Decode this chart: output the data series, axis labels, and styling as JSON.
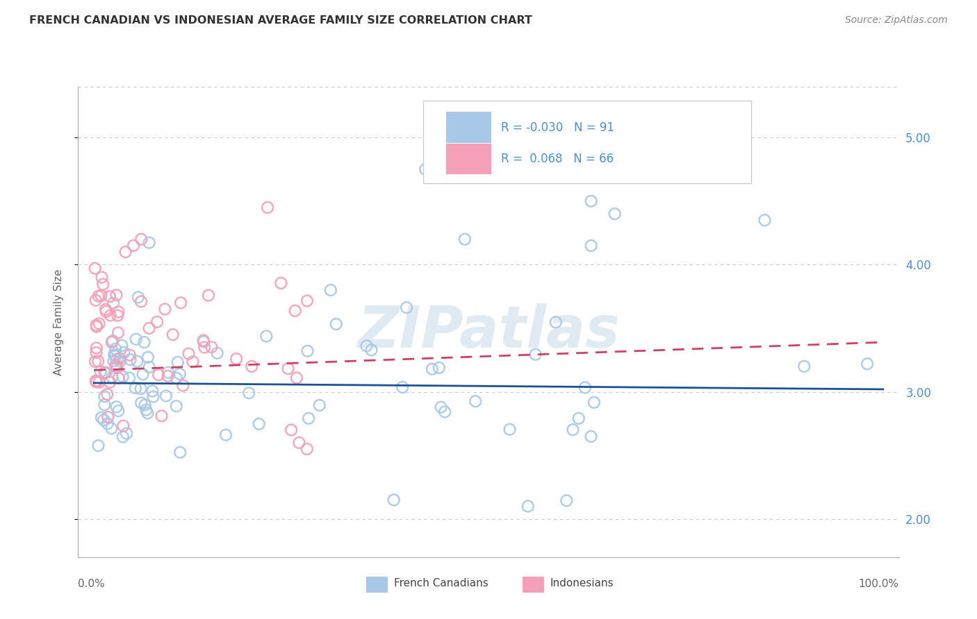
{
  "title": "FRENCH CANADIAN VS INDONESIAN AVERAGE FAMILY SIZE CORRELATION CHART",
  "source": "Source: ZipAtlas.com",
  "ylabel": "Average Family Size",
  "watermark": "ZIPatlas",
  "ylim": [
    1.7,
    5.4
  ],
  "xlim": [
    -0.02,
    1.02
  ],
  "yticks": [
    2.0,
    3.0,
    4.0,
    5.0
  ],
  "xticks": [
    0.0,
    0.1,
    0.2,
    0.3,
    0.4,
    0.5,
    0.6,
    0.7,
    0.8,
    0.9,
    1.0
  ],
  "french_R": -0.03,
  "french_N": 91,
  "indonesian_R": 0.068,
  "indonesian_N": 66,
  "french_color": "#a8c8e8",
  "indonesian_color": "#f4a0b8",
  "french_line_color": "#1a5296",
  "indonesian_line_color": "#d04060",
  "right_axis_color": "#4a90d9",
  "grid_color": "#cccccc",
  "spine_color": "#aaaaaa",
  "title_color": "#333333",
  "source_color": "#888888",
  "ylabel_color": "#666666",
  "xlabel_color": "#666666",
  "legend_text_color": "#4a90d9",
  "legend_border_color": "#cccccc"
}
